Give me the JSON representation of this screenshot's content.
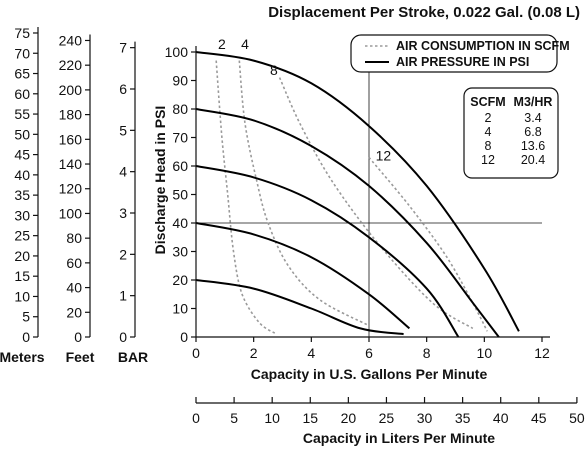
{
  "chart_data": {
    "type": "line",
    "title": "Displacement Per Stroke, 0.022 Gal. (0.08 L)",
    "xlabel": "Capacity in U.S. Gallons Per Minute",
    "ylabel": "Discharge Head in PSI",
    "xlim": [
      0,
      12
    ],
    "ylim": [
      0,
      100
    ],
    "xticks": [
      0,
      2,
      4,
      6,
      8,
      10,
      12
    ],
    "yticks": [
      0,
      10,
      20,
      30,
      40,
      50,
      60,
      70,
      80,
      90,
      100
    ],
    "grid": "horizontal line at 40 PSI and vertical line at 6 GPM",
    "legend": {
      "position": "top-right",
      "entries": [
        {
          "label": "AIR CONSUMPTION IN SCFM",
          "style": "dashed-gray"
        },
        {
          "label": "AIR PRESSURE IN PSI",
          "style": "solid-black"
        }
      ]
    },
    "pressure_curves": [
      {
        "points": [
          [
            0,
            100
          ],
          [
            2,
            97
          ],
          [
            4,
            89
          ],
          [
            6,
            74
          ],
          [
            8,
            53
          ],
          [
            10,
            24
          ],
          [
            11.2,
            2
          ]
        ]
      },
      {
        "points": [
          [
            0,
            80
          ],
          [
            2,
            76
          ],
          [
            4,
            67
          ],
          [
            6,
            53
          ],
          [
            8,
            33
          ],
          [
            9.6,
            12
          ],
          [
            10.5,
            0
          ]
        ]
      },
      {
        "points": [
          [
            0,
            60
          ],
          [
            2,
            56
          ],
          [
            4,
            48
          ],
          [
            6,
            35
          ],
          [
            8,
            17
          ],
          [
            9.1,
            0
          ]
        ]
      },
      {
        "points": [
          [
            0,
            40
          ],
          [
            2,
            36
          ],
          [
            4,
            28
          ],
          [
            6,
            15
          ],
          [
            7.4,
            3
          ]
        ]
      },
      {
        "points": [
          [
            0,
            20
          ],
          [
            2,
            17
          ],
          [
            4,
            10
          ],
          [
            5.7,
            3
          ],
          [
            7.2,
            1
          ]
        ]
      }
    ],
    "air_consumption_curves": [
      {
        "label": "2",
        "points": [
          [
            0.7,
            97
          ],
          [
            0.9,
            70
          ],
          [
            1.1,
            50
          ],
          [
            1.3,
            30
          ],
          [
            1.6,
            15
          ],
          [
            2.2,
            5
          ],
          [
            2.8,
            1
          ]
        ]
      },
      {
        "label": "4",
        "points": [
          [
            1.5,
            97
          ],
          [
            1.7,
            75
          ],
          [
            2.1,
            55
          ],
          [
            2.5,
            40
          ],
          [
            3.2,
            25
          ],
          [
            4.3,
            13
          ],
          [
            6.0,
            4
          ]
        ]
      },
      {
        "label": "8",
        "points": [
          [
            2.9,
            91
          ],
          [
            3.6,
            75
          ],
          [
            4.7,
            55
          ],
          [
            6.3,
            33
          ],
          [
            8.2,
            12
          ],
          [
            9.6,
            3
          ]
        ]
      },
      {
        "label": "12",
        "points": [
          [
            6.0,
            63
          ],
          [
            7.4,
            46
          ],
          [
            8.7,
            28
          ],
          [
            9.7,
            10
          ],
          [
            10.1,
            2
          ]
        ]
      }
    ],
    "curve_labels": [
      {
        "text": "2",
        "x": 0.9,
        "y": 101
      },
      {
        "text": "4",
        "x": 1.7,
        "y": 101
      },
      {
        "text": "8",
        "x": 2.7,
        "y": 92
      },
      {
        "text": "12",
        "x": 6.5,
        "y": 62
      }
    ],
    "scfm_table": {
      "headers": [
        "SCFM",
        "M3/HR"
      ],
      "rows": [
        [
          "2",
          "3.4"
        ],
        [
          "4",
          "6.8"
        ],
        [
          "8",
          "13.6"
        ],
        [
          "12",
          "20.4"
        ]
      ]
    },
    "secondary_axes": {
      "meters": {
        "label": "Meters",
        "ticks": [
          0,
          5,
          10,
          15,
          20,
          25,
          30,
          35,
          40,
          45,
          50,
          55,
          60,
          65,
          70,
          75
        ],
        "per_psi": 0.7031
      },
      "feet": {
        "label": "Feet",
        "ticks": [
          0,
          20,
          40,
          60,
          80,
          100,
          120,
          140,
          160,
          180,
          200,
          220,
          240
        ],
        "per_psi": 2.3067
      },
      "bar": {
        "label": "BAR",
        "ticks": [
          0,
          1,
          2,
          3,
          4,
          5,
          6,
          7
        ],
        "per_psi": 0.06895
      }
    },
    "liters_axis": {
      "label": "Capacity in Liters Per Minute",
      "ticks": [
        0,
        5,
        10,
        15,
        20,
        25,
        30,
        35,
        40,
        45,
        50
      ],
      "lpm_per_gpm": 3.785
    }
  }
}
